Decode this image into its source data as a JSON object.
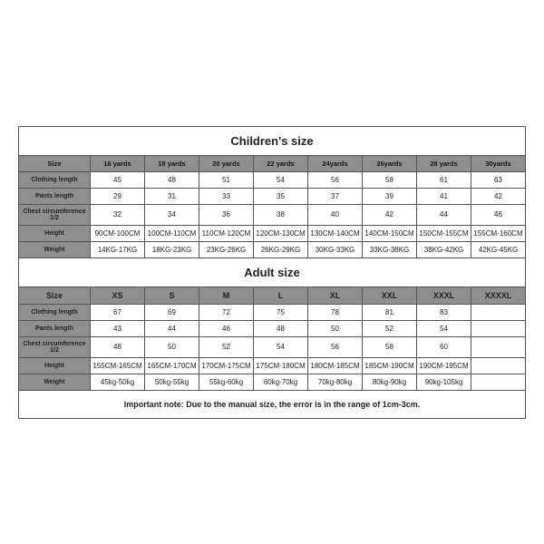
{
  "children": {
    "title": "Children's size",
    "headers": [
      "Size",
      "16 yards",
      "18 yards",
      "20 yards",
      "22 yards",
      "24yards",
      "26yards",
      "28 yards",
      "30yards"
    ],
    "rows": [
      {
        "label": "Clothing length",
        "vals": [
          "45",
          "48",
          "51",
          "54",
          "56",
          "58",
          "61",
          "63"
        ]
      },
      {
        "label": "Pants length",
        "vals": [
          "29",
          "31",
          "33",
          "35",
          "37",
          "39",
          "41",
          "42"
        ]
      },
      {
        "label": "Chest circumference 1/2",
        "vals": [
          "32",
          "34",
          "36",
          "38",
          "40",
          "42",
          "44",
          "46"
        ]
      },
      {
        "label": "Height",
        "vals": [
          "90CM-100CM",
          "100CM-110CM",
          "110CM-120CM",
          "120CM-130CM",
          "130CM-140CM",
          "140CM-150CM",
          "150CM-155CM",
          "155CM-160CM"
        ]
      },
      {
        "label": "Weight",
        "vals": [
          "14KG-17KG",
          "18KG-23KG",
          "23KG-26KG",
          "26KG-29KG",
          "30KG-33KG",
          "33KG-38KG",
          "38KG-42KG",
          "42KG-45KG"
        ]
      }
    ]
  },
  "adult": {
    "title": "Adult size",
    "headers": [
      "Size",
      "XS",
      "S",
      "M",
      "L",
      "XL",
      "XXL",
      "XXXL",
      "XXXXL"
    ],
    "rows": [
      {
        "label": "Clothing length",
        "vals": [
          "67",
          "69",
          "72",
          "75",
          "78",
          "81",
          "83",
          ""
        ]
      },
      {
        "label": "Pants length",
        "vals": [
          "43",
          "44",
          "46",
          "48",
          "50",
          "52",
          "54",
          ""
        ]
      },
      {
        "label": "Chest circumference 1/2",
        "vals": [
          "48",
          "50",
          "52",
          "54",
          "56",
          "58",
          "60",
          ""
        ]
      },
      {
        "label": "Height",
        "vals": [
          "155CM-165CM",
          "165CM-170CM",
          "170CM-175CM",
          "175CM-180CM",
          "180CM-185CM",
          "185CM-190CM",
          "190CM-195CM",
          ""
        ]
      },
      {
        "label": "Weight",
        "vals": [
          "45kg-50kg",
          "50kg-55kg",
          "55kg-60kg",
          "60kg-70kg",
          "70kg-80kg",
          "80kg-90kg",
          "90kg-105kg",
          ""
        ]
      }
    ]
  },
  "note": "Important note: Due to the manual size, the error is in the range of 1cm-3cm."
}
